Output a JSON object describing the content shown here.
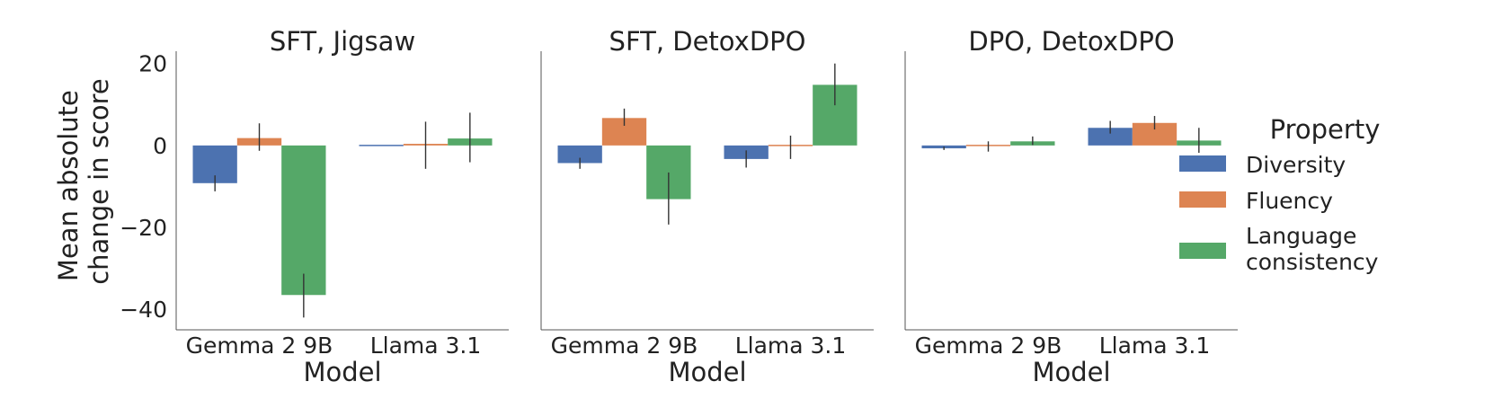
{
  "chart_data": {
    "type": "bar",
    "ylabel_lines": [
      "Mean absolute",
      "change in score"
    ],
    "xlabel": "Model",
    "ylim": [
      -45,
      23
    ],
    "yticks": [
      20,
      0,
      -20,
      -40
    ],
    "ytick_labels": [
      "20",
      "0",
      "−20",
      "−40"
    ],
    "categories": [
      "Gemma 2 9B",
      "Llama 3.1"
    ],
    "legend": {
      "title": "Property",
      "placement": "right",
      "entries": [
        {
          "name": "Diversity",
          "lines": [
            "Diversity"
          ],
          "color": "#4c72b0"
        },
        {
          "name": "Fluency",
          "lines": [
            "Fluency"
          ],
          "color": "#dd8452"
        },
        {
          "name": "Language consistency",
          "lines": [
            "Language",
            "consistency"
          ],
          "color": "#55a868"
        }
      ]
    },
    "panels": [
      {
        "title": "SFT, Jigsaw",
        "series": [
          {
            "name": "Diversity",
            "values": [
              -9.2,
              0.0
            ],
            "err_low": [
              -11.2,
              0.0
            ],
            "err_high": [
              -7.3,
              0.0
            ]
          },
          {
            "name": "Fluency",
            "values": [
              1.8,
              0.4
            ],
            "err_low": [
              -1.3,
              -5.7
            ],
            "err_high": [
              5.4,
              5.8
            ]
          },
          {
            "name": "Language consistency",
            "values": [
              -36.5,
              1.7
            ],
            "err_low": [
              -42.0,
              -4.1
            ],
            "err_high": [
              -31.3,
              8.0
            ]
          }
        ]
      },
      {
        "title": "SFT, DetoxDPO",
        "series": [
          {
            "name": "Diversity",
            "values": [
              -4.3,
              -3.3
            ],
            "err_low": [
              -5.7,
              -5.4
            ],
            "err_high": [
              -3.0,
              -1.2
            ]
          },
          {
            "name": "Fluency",
            "values": [
              6.7,
              -0.3
            ],
            "err_low": [
              4.8,
              -3.3
            ],
            "err_high": [
              9.0,
              2.4
            ]
          },
          {
            "name": "Language consistency",
            "values": [
              -13.1,
              14.8
            ],
            "err_low": [
              -19.3,
              9.8
            ],
            "err_high": [
              -6.6,
              20.0
            ]
          }
        ]
      },
      {
        "title": "DPO, DetoxDPO",
        "series": [
          {
            "name": "Diversity",
            "values": [
              -0.7,
              4.3
            ],
            "err_low": [
              -1.1,
              2.9
            ],
            "err_high": [
              -0.3,
              6.0
            ]
          },
          {
            "name": "Fluency",
            "values": [
              -0.2,
              5.5
            ],
            "err_low": [
              -1.5,
              3.9
            ],
            "err_high": [
              1.0,
              7.2
            ]
          },
          {
            "name": "Language consistency",
            "values": [
              1.0,
              1.2
            ],
            "err_low": [
              0.1,
              -1.8
            ],
            "err_high": [
              2.2,
              4.3
            ]
          }
        ]
      }
    ]
  }
}
